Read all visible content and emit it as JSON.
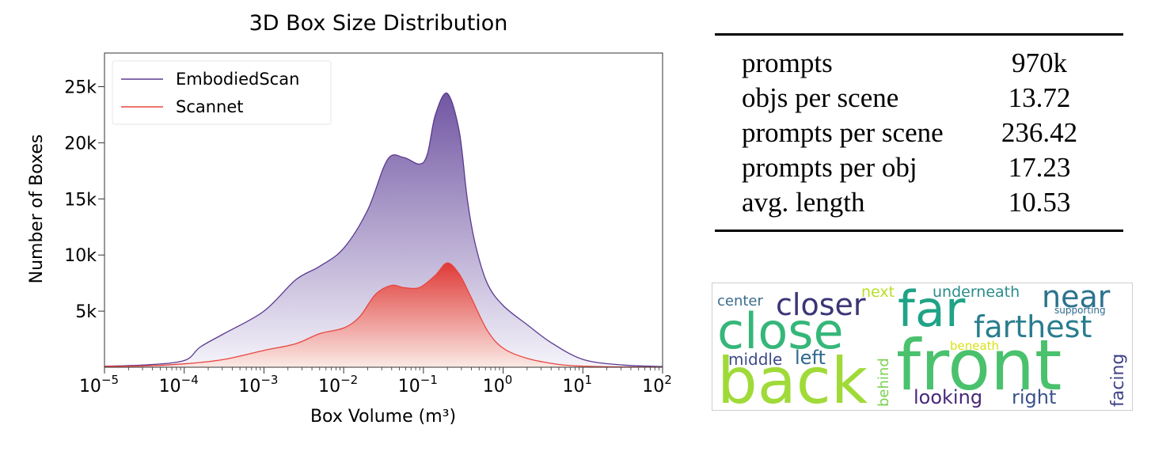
{
  "chart_data": {
    "type": "area",
    "title": "3D Box Size Distribution",
    "xlabel": "Box Volume (m³)",
    "ylabel": "Number of Boxes",
    "x_scale": "log",
    "xlim_exp": [
      -5,
      2
    ],
    "ylim": [
      0,
      28000
    ],
    "x_tick_labels": [
      {
        "exp": -5,
        "base": "10",
        "sup": "−5"
      },
      {
        "exp": -4,
        "base": "10",
        "sup": "−4"
      },
      {
        "exp": -3,
        "base": "10",
        "sup": "−3"
      },
      {
        "exp": -2,
        "base": "10",
        "sup": "−2"
      },
      {
        "exp": -1,
        "base": "10",
        "sup": "−1"
      },
      {
        "exp": 0,
        "base": "10",
        "sup": "0"
      },
      {
        "exp": 1,
        "base": "10",
        "sup": "1"
      },
      {
        "exp": 2,
        "base": "10",
        "sup": "2"
      }
    ],
    "y_ticks": [
      {
        "value": 5000,
        "label": "5k"
      },
      {
        "value": 10000,
        "label": "10k"
      },
      {
        "value": 15000,
        "label": "15k"
      },
      {
        "value": 20000,
        "label": "20k"
      },
      {
        "value": 25000,
        "label": "25k"
      }
    ],
    "legend": {
      "position": "top-left",
      "entries": [
        {
          "name": "EmbodiedScan",
          "color": "#5b3a8f"
        },
        {
          "name": "Scannet",
          "color": "#e8463f"
        }
      ]
    },
    "series": [
      {
        "name": "EmbodiedScan",
        "color": "#5b3a8f",
        "fill_top": "#6a4d9e",
        "fill_bottom": "#f4f3fa",
        "x_log": [
          -5.0,
          -4.5,
          -4.0,
          -3.8,
          -3.5,
          -3.0,
          -2.6,
          -2.3,
          -2.0,
          -1.7,
          -1.45,
          -1.25,
          -1.05,
          -0.95,
          -0.85,
          -0.7,
          -0.55,
          -0.45,
          -0.35,
          -0.2,
          0.0,
          0.3,
          0.6,
          1.0,
          1.5,
          2.0
        ],
        "values": [
          100,
          200,
          600,
          1800,
          3000,
          5000,
          7800,
          9000,
          10600,
          14000,
          18500,
          18700,
          18100,
          19000,
          22500,
          24400,
          21000,
          15000,
          11000,
          7500,
          5500,
          3800,
          2200,
          700,
          200,
          60
        ]
      },
      {
        "name": "Scannet",
        "color": "#e8463f",
        "fill_top": "#e0332e",
        "fill_bottom": "#fbe9e4",
        "x_log": [
          -5.0,
          -4.5,
          -4.0,
          -3.5,
          -3.0,
          -2.6,
          -2.3,
          -2.0,
          -1.8,
          -1.6,
          -1.4,
          -1.25,
          -1.05,
          -0.85,
          -0.7,
          -0.55,
          -0.4,
          -0.2,
          0.0,
          0.3,
          0.7,
          1.0,
          1.5,
          2.0
        ],
        "values": [
          80,
          120,
          300,
          700,
          1500,
          2100,
          3000,
          3500,
          4500,
          6500,
          7300,
          7100,
          7100,
          8200,
          9300,
          8300,
          6200,
          3300,
          1700,
          800,
          250,
          100,
          30,
          10
        ]
      }
    ]
  },
  "stats_table": {
    "rows": [
      {
        "label": "prompts",
        "value": "970k"
      },
      {
        "label": "objs per scene",
        "value": "13.72"
      },
      {
        "label": "prompts per scene",
        "value": "236.42"
      },
      {
        "label": "prompts per obj",
        "value": "17.23"
      },
      {
        "label": "avg. length",
        "value": "10.53"
      }
    ]
  },
  "word_cloud": {
    "words": [
      {
        "text": "center",
        "color": "#3b6c8c"
      },
      {
        "text": "closer",
        "color": "#3b3576"
      },
      {
        "text": "next",
        "color": "#b8de29"
      },
      {
        "text": "far",
        "color": "#20a386"
      },
      {
        "text": "underneath",
        "color": "#2b8c8c"
      },
      {
        "text": "near",
        "color": "#2c728e"
      },
      {
        "text": "supporting",
        "color": "#2f6b8e"
      },
      {
        "text": "close",
        "color": "#35b779"
      },
      {
        "text": "farthest",
        "color": "#287d8e"
      },
      {
        "text": "beneath",
        "color": "#d8e219"
      },
      {
        "text": "middle",
        "color": "#3e4a89"
      },
      {
        "text": "left",
        "color": "#31688e"
      },
      {
        "text": "behind",
        "color": "#7ad151"
      },
      {
        "text": "back",
        "color": "#a0da39"
      },
      {
        "text": "front",
        "color": "#4ac16d"
      },
      {
        "text": "facing",
        "color": "#414487"
      },
      {
        "text": "looking",
        "color": "#482878"
      },
      {
        "text": "right",
        "color": "#3b528b"
      }
    ]
  }
}
